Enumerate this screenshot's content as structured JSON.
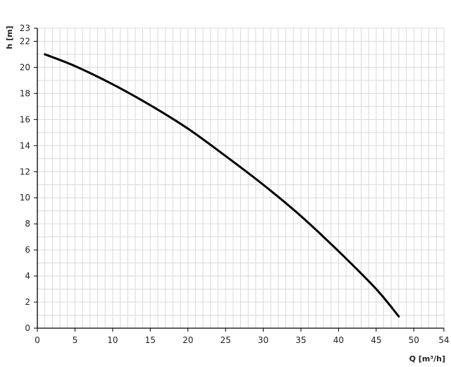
{
  "chart_data": {
    "type": "line",
    "title": "",
    "xlabel": "Q [m³/h]",
    "ylabel": "h [m]",
    "xlim": [
      0,
      54
    ],
    "ylim": [
      0,
      23
    ],
    "xticks": [
      0,
      5,
      10,
      15,
      20,
      25,
      30,
      35,
      40,
      45,
      50,
      54
    ],
    "yticks": [
      0,
      2,
      4,
      6,
      8,
      10,
      12,
      14,
      16,
      18,
      20,
      22,
      23
    ],
    "grid": true,
    "grid_step": {
      "x": 1,
      "y": 1
    },
    "colors": {
      "line": "#000000",
      "grid": "#d9d9d9",
      "axis": "#000000"
    },
    "series": [
      {
        "x": [
          1,
          5,
          10,
          15,
          20,
          25,
          30,
          35,
          40,
          45,
          48
        ],
        "y": [
          21.0,
          20.1,
          18.7,
          17.1,
          15.3,
          13.2,
          11.0,
          8.6,
          5.9,
          3.0,
          0.9
        ]
      }
    ]
  }
}
